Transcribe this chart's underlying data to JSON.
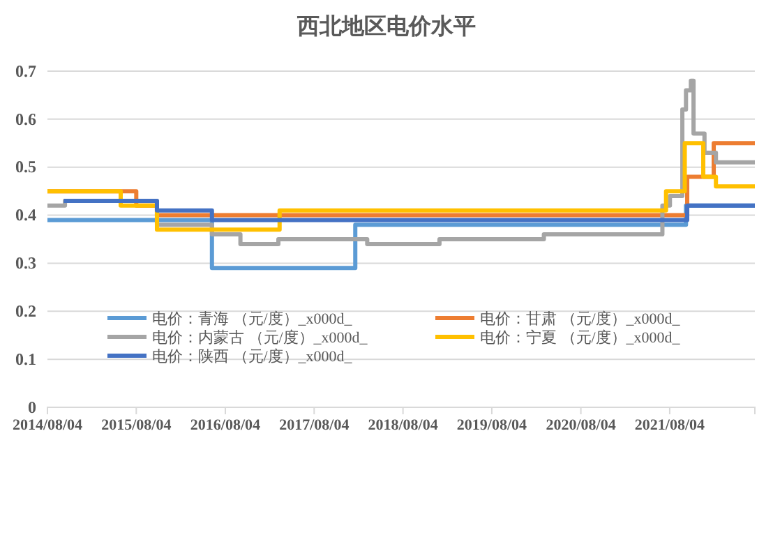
{
  "chart_data": {
    "type": "step",
    "title": "西北地区电价水平",
    "xlim": [
      "2014-08-04",
      "2022-07-20"
    ],
    "xticks": [
      {
        "value": "2014-08-04",
        "label": "2014/08/04"
      },
      {
        "value": "2015-08-04",
        "label": "2015/08/04"
      },
      {
        "value": "2016-08-04",
        "label": "2016/08/04"
      },
      {
        "value": "2017-08-04",
        "label": "2017/08/04"
      },
      {
        "value": "2018-08-04",
        "label": "2018/08/04"
      },
      {
        "value": "2019-08-04",
        "label": "2019/08/04"
      },
      {
        "value": "2020-08-04",
        "label": "2020/08/04"
      },
      {
        "value": "2021-08-04",
        "label": "2021/08/04"
      }
    ],
    "ylim": [
      0,
      0.7
    ],
    "yticks": [
      {
        "value": 0,
        "label": "0"
      },
      0.1,
      0.2,
      0.3,
      0.4,
      0.5,
      0.6,
      0.7
    ],
    "grid": "y",
    "legend": "bottom",
    "line_style": "solid",
    "marker": "none",
    "series": [
      {
        "name": "电价：青海 （元/度）_x000d_",
        "color": "#5b9bd5",
        "x": [
          "2014-08-04",
          "2016-06-10",
          "2018-01-20",
          "2021-10-10",
          "2022-07-20"
        ],
        "values": [
          0.39,
          0.29,
          0.38,
          0.42,
          0.42
        ]
      },
      {
        "name": "电价：甘肃 （元/度）_x000d_",
        "color": "#ed7d31",
        "x": [
          "2014-08-04",
          "2015-08-04",
          "2015-10-28",
          "2021-10-15",
          "2022-02-01",
          "2022-07-20"
        ],
        "values": [
          0.45,
          0.42,
          0.4,
          0.48,
          0.55,
          0.55
        ]
      },
      {
        "name": "电价：内蒙古 （元/度）_x000d_",
        "color": "#a5a5a5",
        "x": [
          "2014-08-04",
          "2014-10-15",
          "2015-10-28",
          "2016-06-10",
          "2016-10-05",
          "2017-03-10",
          "2018-03-10",
          "2019-01-01",
          "2020-03-05",
          "2021-07-05",
          "2021-08-05",
          "2021-09-25",
          "2021-10-10",
          "2021-10-30",
          "2021-11-10",
          "2021-12-25",
          "2022-02-10",
          "2022-07-20"
        ],
        "values": [
          0.42,
          0.43,
          0.38,
          0.36,
          0.34,
          0.35,
          0.34,
          0.35,
          0.36,
          0.42,
          0.44,
          0.62,
          0.66,
          0.68,
          0.57,
          0.53,
          0.51,
          0.51
        ]
      },
      {
        "name": "电价：宁夏 （元/度）_x000d_",
        "color": "#ffc000",
        "x": [
          "2014-08-04",
          "2015-06-01",
          "2015-10-28",
          "2017-03-15",
          "2021-07-20",
          "2021-10-05",
          "2021-12-20",
          "2022-02-10",
          "2022-07-20"
        ],
        "values": [
          0.45,
          0.42,
          0.37,
          0.41,
          0.45,
          0.55,
          0.48,
          0.46,
          0.46
        ]
      },
      {
        "name": "电价：陕西 （元/度）_x000d_",
        "color": "#4472c4",
        "x": [
          "2014-10-10",
          "2015-10-28",
          "2016-06-10",
          "2021-10-15",
          "2022-07-20"
        ],
        "values": [
          0.43,
          0.41,
          0.39,
          0.42,
          0.42
        ]
      }
    ]
  }
}
